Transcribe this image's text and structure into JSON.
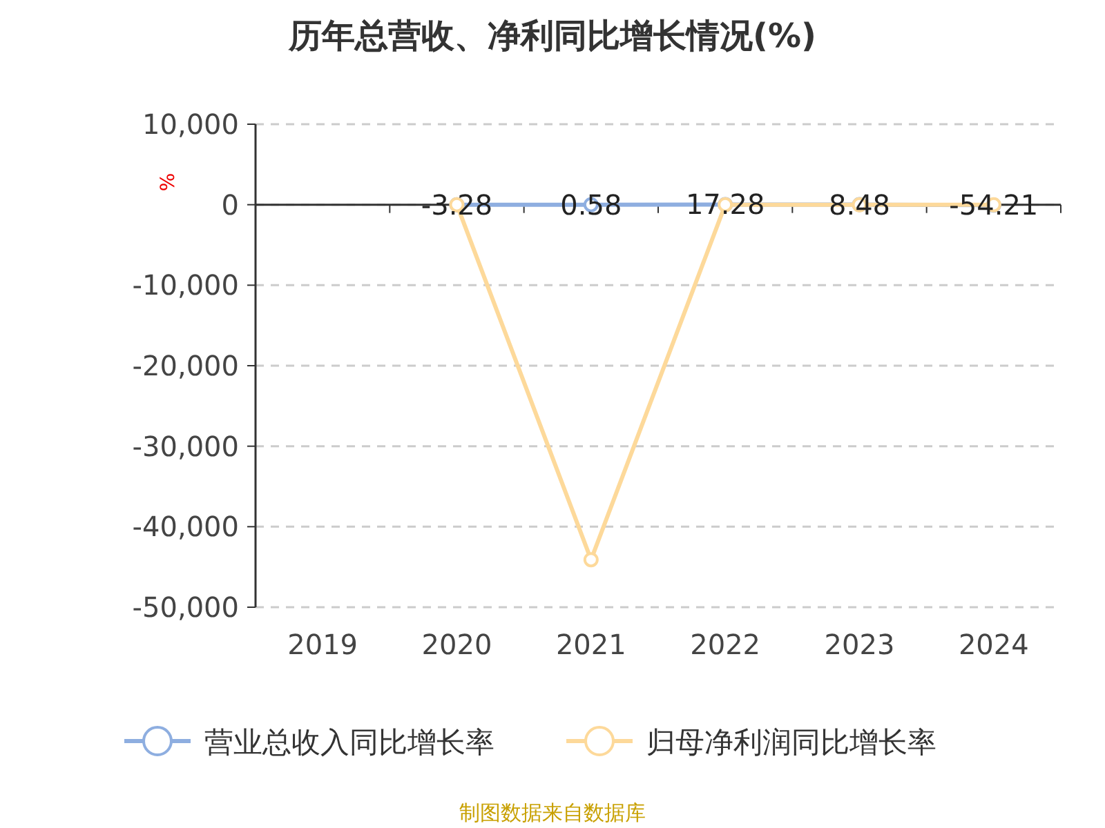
{
  "chart_data": {
    "type": "line",
    "title": "历年总营收、净利同比增长情况(%)",
    "ylabel": "%",
    "categories": [
      "2019",
      "2020",
      "2021",
      "2022",
      "2023",
      "2024"
    ],
    "series": [
      {
        "name": "营业总收入同比增长率",
        "color": "#8eaee0",
        "values": [
          null,
          -3.28,
          0.58,
          17.28,
          8.48,
          -54.21
        ],
        "value_labels": [
          null,
          "-3.28",
          "0.58",
          "17.28",
          "8.48",
          "-54.21"
        ]
      },
      {
        "name": "归母净利润同比增长率",
        "color": "#fdd99a",
        "values": [
          null,
          0,
          -44100,
          0,
          0,
          0
        ]
      }
    ],
    "ylim": [
      -50000,
      10000
    ],
    "yticks": [
      {
        "value": -50000,
        "label": "-50,000"
      },
      {
        "value": -40000,
        "label": "-40,000"
      },
      {
        "value": -30000,
        "label": "-30,000"
      },
      {
        "value": -20000,
        "label": "-20,000"
      },
      {
        "value": -10000,
        "label": "-10,000"
      },
      0,
      {
        "value": 10000,
        "label": "10,000"
      }
    ],
    "grid": "y",
    "legend": "bottom",
    "marker": "circle",
    "annotations": [
      "制图数据来自数据库"
    ]
  }
}
